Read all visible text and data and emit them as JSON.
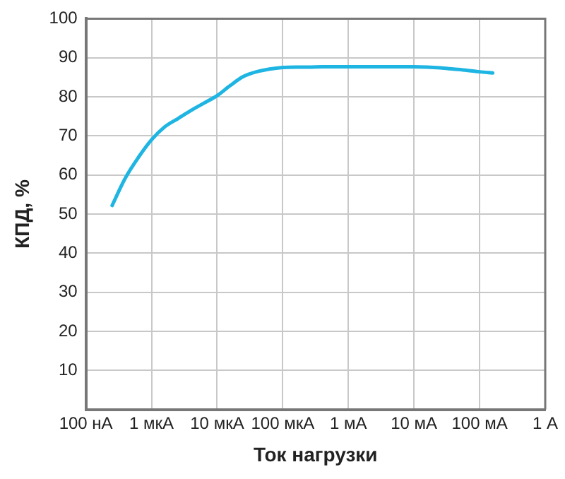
{
  "chart_data": {
    "type": "line",
    "xlabel": "Ток нагрузки",
    "ylabel": "КПД, %",
    "categories": [
      "100 нА",
      null,
      null,
      null,
      null,
      "1 мкА",
      null,
      null,
      null,
      null,
      "10 мкА",
      null,
      null,
      null,
      null,
      "100 мкА",
      null,
      null,
      null,
      null,
      "1 мА",
      null,
      null,
      null,
      null,
      "10 мА",
      null,
      null,
      null,
      null,
      "100 мА",
      null,
      null,
      null,
      null,
      "1 А"
    ],
    "ylim": [
      0,
      100
    ],
    "yticks": [
      10,
      20,
      30,
      40,
      50,
      60,
      70,
      80,
      90,
      100
    ],
    "grid": true,
    "legend": false,
    "marker": "none",
    "line_style": "solid",
    "series": [
      {
        "color": "#1fb5e3",
        "values": [
          null,
          null,
          52.2,
          59.2,
          64.5,
          69,
          72.3,
          74.4,
          76.5,
          78.4,
          80.3,
          82.9,
          85.2,
          86.4,
          87.1,
          87.5,
          87.6,
          87.6,
          87.7,
          87.7,
          87.7,
          87.7,
          87.7,
          87.7,
          87.7,
          87.7,
          87.6,
          87.4,
          87.1,
          86.8,
          86.4,
          86.1,
          null,
          null,
          null,
          null
        ]
      }
    ]
  }
}
